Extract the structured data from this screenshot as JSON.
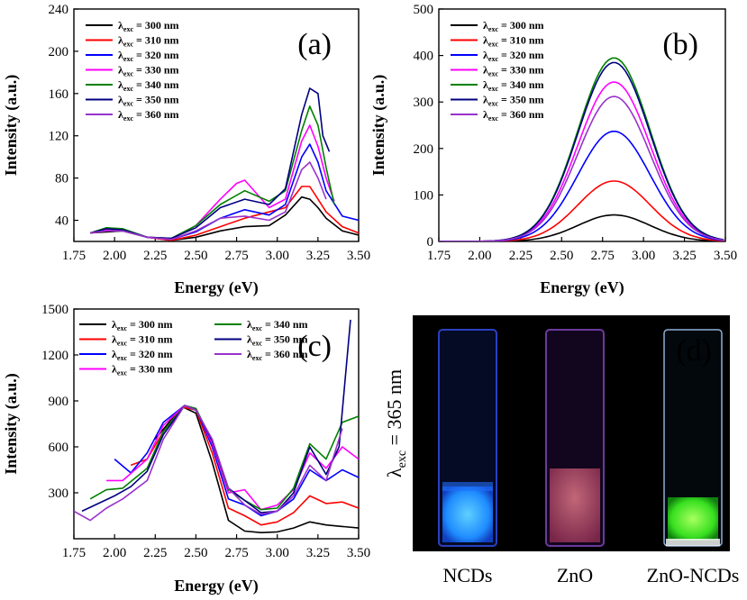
{
  "legend_prefix": "λ",
  "legend_sub": "exc",
  "chart_data": [
    {
      "id": "a",
      "type": "line",
      "panel_label": "(a)",
      "xlabel": "Energy (eV)",
      "ylabel": "Intensity (a.u.)",
      "xlim": [
        1.75,
        3.5
      ],
      "ylim": [
        20,
        240
      ],
      "xticks": [
        1.75,
        2.0,
        2.25,
        2.5,
        2.75,
        3.0,
        3.25,
        3.5
      ],
      "yticks": [
        40,
        80,
        120,
        160,
        200,
        240
      ],
      "series": [
        {
          "name": "= 300 nm",
          "color": "#000000",
          "x": [
            1.85,
            1.95,
            2.05,
            2.2,
            2.35,
            2.5,
            2.65,
            2.8,
            2.95,
            3.05,
            3.15,
            3.2,
            3.25,
            3.3,
            3.4,
            3.5
          ],
          "y": [
            28,
            29,
            30,
            24,
            21,
            24,
            30,
            34,
            35,
            45,
            62,
            60,
            52,
            42,
            30,
            26
          ]
        },
        {
          "name": "= 310 nm",
          "color": "#ff0000",
          "x": [
            1.85,
            1.95,
            2.05,
            2.2,
            2.35,
            2.5,
            2.65,
            2.8,
            2.95,
            3.05,
            3.15,
            3.2,
            3.25,
            3.3,
            3.4,
            3.5
          ],
          "y": [
            28,
            30,
            31,
            24,
            21,
            26,
            34,
            42,
            48,
            52,
            72,
            72,
            60,
            48,
            34,
            28
          ]
        },
        {
          "name": "= 320 nm",
          "color": "#0000ff",
          "x": [
            1.85,
            1.95,
            2.05,
            2.2,
            2.35,
            2.5,
            2.65,
            2.8,
            2.95,
            3.05,
            3.15,
            3.2,
            3.25,
            3.3,
            3.4,
            3.5
          ],
          "y": [
            28,
            31,
            31,
            24,
            22,
            29,
            42,
            50,
            45,
            55,
            100,
            112,
            95,
            68,
            44,
            40
          ]
        },
        {
          "name": "= 330 nm",
          "color": "#ff00ff",
          "x": [
            1.85,
            1.95,
            2.05,
            2.2,
            2.35,
            2.5,
            2.65,
            2.75,
            2.8,
            2.95,
            3.05,
            3.15,
            3.2,
            3.25,
            3.3,
            3.35
          ],
          "y": [
            28,
            31,
            31,
            24,
            22,
            35,
            60,
            75,
            78,
            52,
            60,
            115,
            130,
            110,
            80,
            58
          ]
        },
        {
          "name": "= 340 nm",
          "color": "#008000",
          "x": [
            1.85,
            1.95,
            2.05,
            2.2,
            2.35,
            2.5,
            2.65,
            2.8,
            2.95,
            3.05,
            3.15,
            3.2,
            3.25,
            3.3,
            3.35
          ],
          "y": [
            28,
            33,
            32,
            24,
            23,
            35,
            55,
            68,
            58,
            68,
            125,
            148,
            130,
            90,
            55
          ]
        },
        {
          "name": "= 350 nm",
          "color": "#000080",
          "x": [
            1.85,
            1.95,
            2.05,
            2.2,
            2.35,
            2.5,
            2.65,
            2.8,
            2.95,
            3.05,
            3.15,
            3.2,
            3.25,
            3.28,
            3.32
          ],
          "y": [
            28,
            32,
            31,
            24,
            23,
            33,
            52,
            60,
            55,
            70,
            140,
            165,
            160,
            120,
            105
          ]
        },
        {
          "name": "= 360 nm",
          "color": "#9932cc",
          "x": [
            1.85,
            1.95,
            2.05,
            2.2,
            2.35,
            2.5,
            2.65,
            2.8,
            2.95,
            3.05,
            3.15,
            3.2,
            3.25,
            3.3
          ],
          "y": [
            28,
            30,
            30,
            24,
            22,
            30,
            42,
            44,
            40,
            48,
            88,
            95,
            80,
            60
          ]
        }
      ]
    },
    {
      "id": "b",
      "type": "line",
      "panel_label": "(b)",
      "xlabel": "Energy (eV)",
      "ylabel": "Intensity (a.u.)",
      "xlim": [
        1.75,
        3.5
      ],
      "ylim": [
        0,
        500
      ],
      "xticks": [
        1.75,
        2.0,
        2.25,
        2.5,
        2.75,
        3.0,
        3.25,
        3.5
      ],
      "yticks": [
        0,
        100,
        200,
        300,
        400,
        500
      ],
      "peak_x": 2.82,
      "sigma": 0.22,
      "series": [
        {
          "name": "= 300 nm",
          "color": "#000000",
          "peak": 57
        },
        {
          "name": "= 310 nm",
          "color": "#ff0000",
          "peak": 130
        },
        {
          "name": "= 320 nm",
          "color": "#0000ff",
          "peak": 237
        },
        {
          "name": "= 330 nm",
          "color": "#ff00ff",
          "peak": 343
        },
        {
          "name": "= 340 nm",
          "color": "#008000",
          "peak": 395
        },
        {
          "name": "= 350 nm",
          "color": "#000080",
          "peak": 385
        },
        {
          "name": "= 360 nm",
          "color": "#9932cc",
          "peak": 312
        }
      ]
    },
    {
      "id": "c",
      "type": "line",
      "panel_label": "(c)",
      "xlabel": "Energy (eV)",
      "ylabel": "Intensity (a.u.)",
      "xlim": [
        1.75,
        3.5
      ],
      "ylim": [
        0,
        1500
      ],
      "xticks": [
        1.75,
        2.0,
        2.25,
        2.5,
        2.75,
        3.0,
        3.25,
        3.5
      ],
      "yticks": [
        300,
        600,
        900,
        1200,
        1500
      ],
      "series": [
        {
          "name": "= 300 nm",
          "color": "#000000",
          "x": [
            2.25,
            2.35,
            2.42,
            2.5,
            2.6,
            2.7,
            2.8,
            2.9,
            3.0,
            3.1,
            3.2,
            3.3,
            3.4,
            3.5
          ],
          "y": [
            650,
            780,
            860,
            820,
            500,
            120,
            50,
            40,
            45,
            70,
            110,
            90,
            80,
            70
          ]
        },
        {
          "name": "= 310 nm",
          "color": "#ff0000",
          "x": [
            2.1,
            2.2,
            2.3,
            2.42,
            2.5,
            2.6,
            2.7,
            2.8,
            2.9,
            3.0,
            3.1,
            3.2,
            3.3,
            3.4,
            3.5
          ],
          "y": [
            480,
            520,
            700,
            860,
            840,
            560,
            200,
            150,
            90,
            110,
            170,
            280,
            230,
            240,
            200
          ]
        },
        {
          "name": "= 320 nm",
          "color": "#0000ff",
          "x": [
            2.0,
            2.1,
            2.2,
            2.3,
            2.43,
            2.5,
            2.6,
            2.7,
            2.8,
            2.9,
            3.0,
            3.1,
            3.2,
            3.3,
            3.4,
            3.5
          ],
          "y": [
            520,
            430,
            560,
            760,
            870,
            850,
            600,
            260,
            220,
            150,
            180,
            260,
            450,
            380,
            450,
            400
          ]
        },
        {
          "name": "= 330 nm",
          "color": "#ff00ff",
          "x": [
            1.95,
            2.05,
            2.2,
            2.3,
            2.43,
            2.5,
            2.6,
            2.7,
            2.8,
            2.9,
            3.0,
            3.1,
            3.2,
            3.3,
            3.4,
            3.5
          ],
          "y": [
            380,
            380,
            520,
            740,
            870,
            850,
            620,
            300,
            320,
            190,
            220,
            320,
            560,
            460,
            600,
            520
          ]
        },
        {
          "name": "= 340 nm",
          "color": "#008000",
          "x": [
            1.85,
            1.95,
            2.05,
            2.2,
            2.3,
            2.43,
            2.5,
            2.6,
            2.7,
            2.8,
            2.9,
            3.0,
            3.1,
            3.2,
            3.3,
            3.4,
            3.5
          ],
          "y": [
            260,
            320,
            330,
            460,
            700,
            870,
            850,
            640,
            320,
            250,
            190,
            200,
            330,
            620,
            520,
            760,
            800
          ]
        },
        {
          "name": "= 350 nm",
          "color": "#000080",
          "x": [
            1.8,
            1.9,
            2.0,
            2.1,
            2.2,
            2.3,
            2.43,
            2.5,
            2.6,
            2.7,
            2.8,
            2.9,
            3.0,
            3.1,
            3.2,
            3.3,
            3.38,
            3.45
          ],
          "y": [
            180,
            230,
            280,
            340,
            440,
            680,
            870,
            840,
            640,
            330,
            250,
            170,
            180,
            300,
            600,
            420,
            600,
            1430
          ]
        },
        {
          "name": "= 360 nm",
          "color": "#9932cc",
          "x": [
            1.75,
            1.85,
            1.95,
            2.05,
            2.2,
            2.3,
            2.43,
            2.5,
            2.6,
            2.7,
            2.8,
            2.9,
            3.0,
            3.1,
            3.2,
            3.3,
            3.4
          ],
          "y": [
            180,
            120,
            200,
            260,
            380,
            650,
            870,
            840,
            650,
            330,
            220,
            160,
            180,
            280,
            480,
            380,
            720
          ]
        }
      ]
    }
  ],
  "photo_panel": {
    "panel_label": "(d)",
    "side_label_main": "λ",
    "side_label_sub": "exc",
    "side_label_rest": " = 365 nm",
    "vials": [
      {
        "label": "NCDs",
        "glow": "#2aa6ff",
        "outline": "#3a5cff",
        "fill_top": "#0a1a6a"
      },
      {
        "label": "ZnO",
        "glow": "#c2506a",
        "outline": "#8a4aa0",
        "fill_top": "#3a0a3a"
      },
      {
        "label": "ZnO-NCDs",
        "glow": "#4cff3a",
        "outline": "#c8e8ff",
        "fill_top": "#06121a"
      }
    ]
  }
}
